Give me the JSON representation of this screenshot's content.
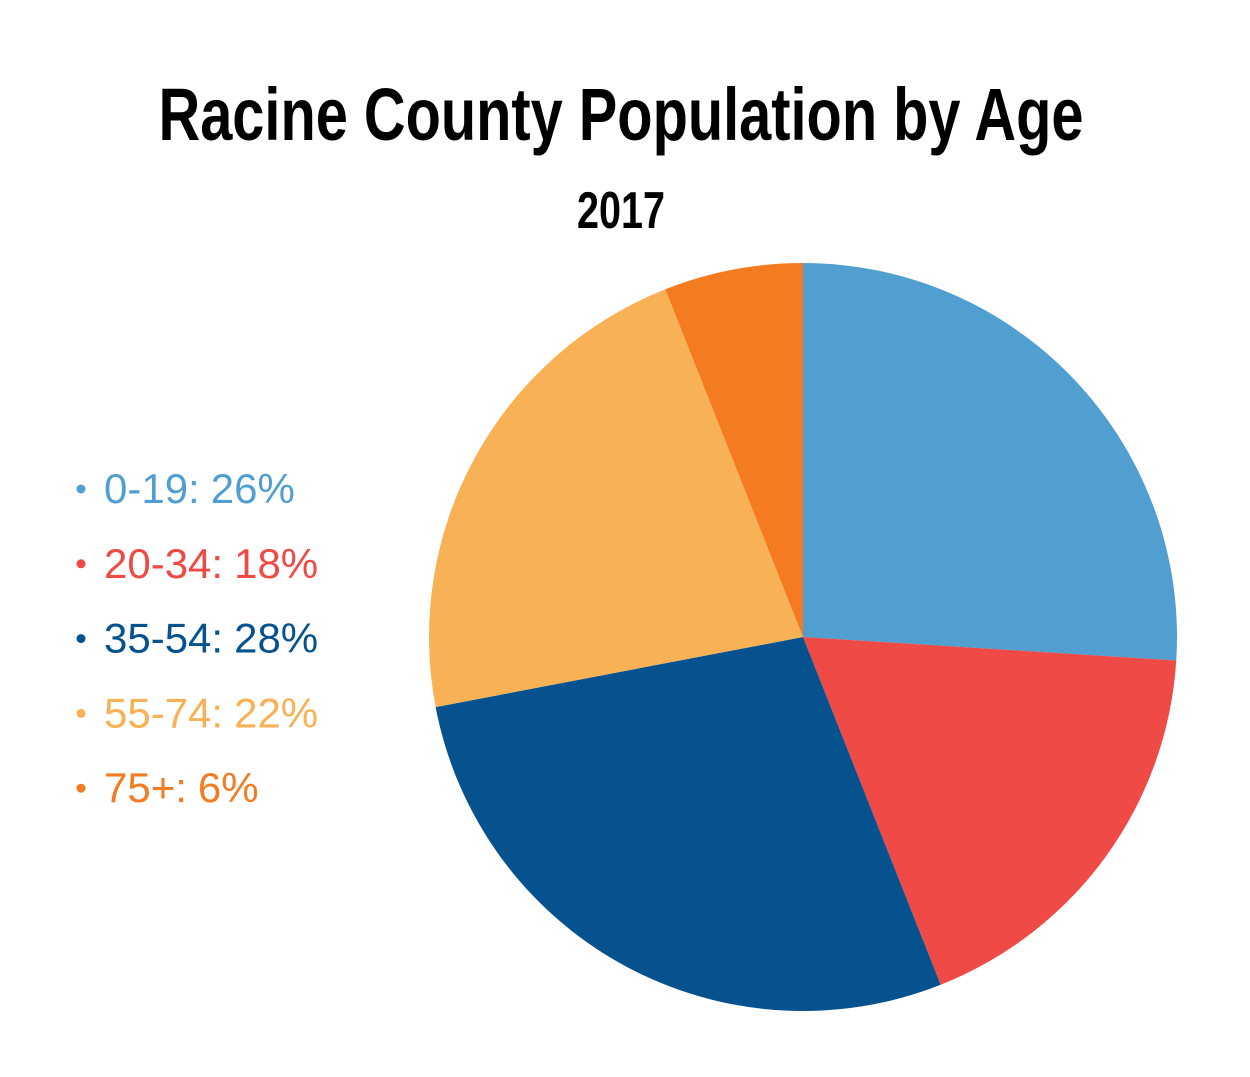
{
  "chart_data": {
    "type": "pie",
    "title": "Racine County Population by Age",
    "subtitle": "2017",
    "categories": [
      "0-19:",
      "20-34:",
      "35-54:",
      "55-74:",
      "75+:"
    ],
    "values": [
      26,
      18,
      28,
      22,
      6
    ],
    "value_labels": [
      "26%",
      "18%",
      "28%",
      "22%",
      "6%"
    ],
    "colors": [
      "#519fd0",
      "#ef4a45",
      "#06528f",
      "#f9b156",
      "#f47b20"
    ],
    "legend": "left"
  }
}
